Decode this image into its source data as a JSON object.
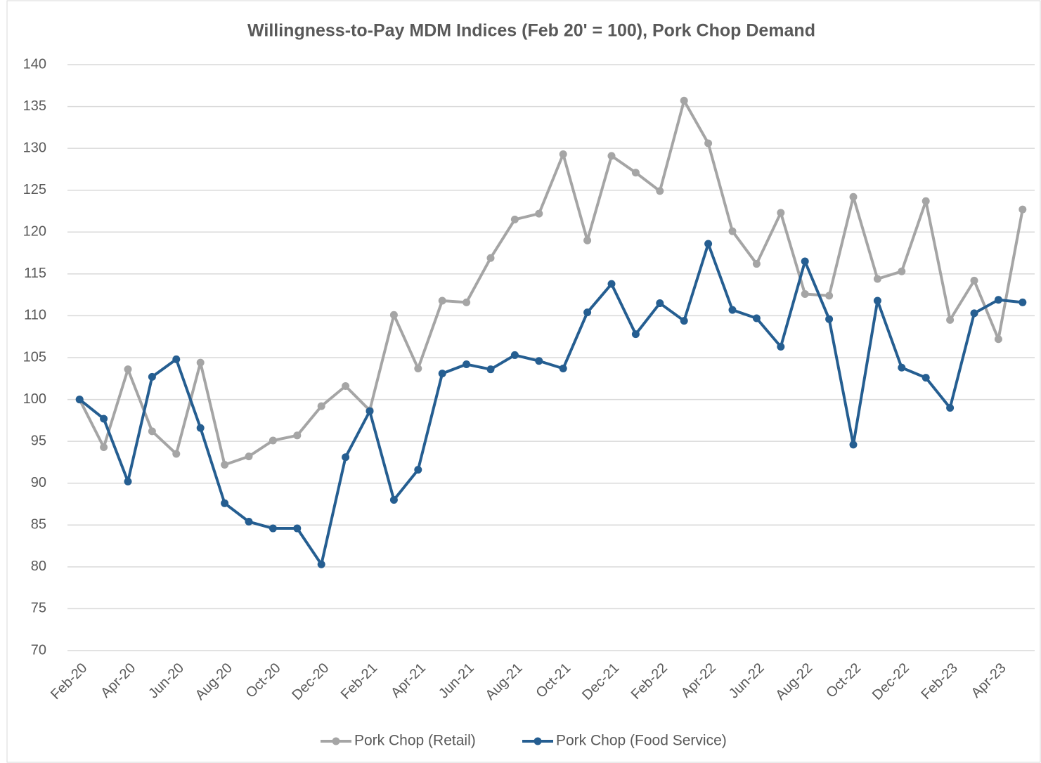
{
  "chart_data": {
    "type": "line",
    "title": "Willingness-to-Pay MDM Indices (Feb 20' = 100), Pork Chop Demand",
    "categories": [
      "Feb-20",
      null,
      "Apr-20",
      null,
      "Jun-20",
      null,
      "Aug-20",
      null,
      "Oct-20",
      null,
      "Dec-20",
      null,
      "Feb-21",
      null,
      "Apr-21",
      null,
      "Jun-21",
      null,
      "Aug-21",
      null,
      "Oct-21",
      null,
      "Dec-21",
      null,
      "Feb-22",
      null,
      "Apr-22",
      null,
      "Jun-22",
      null,
      "Aug-22",
      null,
      "Oct-22",
      null,
      "Dec-22",
      null,
      "Feb-23",
      null,
      "Apr-23",
      null
    ],
    "series": [
      {
        "name": "Pork Chop (Retail)",
        "color": "#a5a5a5",
        "values": [
          100,
          94.3,
          103.6,
          96.2,
          93.5,
          104.4,
          92.2,
          93.2,
          95.1,
          95.7,
          99.2,
          101.6,
          98.7,
          110.1,
          103.7,
          111.8,
          111.6,
          116.9,
          121.5,
          122.2,
          129.3,
          119.0,
          129.1,
          127.1,
          124.9,
          135.7,
          130.6,
          120.1,
          116.2,
          122.3,
          112.6,
          112.4,
          124.2,
          114.4,
          115.3,
          123.7,
          109.5,
          114.2,
          107.2,
          122.7
        ]
      },
      {
        "name": "Pork Chop (Food Service)",
        "color": "#255e91",
        "values": [
          100,
          97.7,
          90.2,
          102.7,
          104.8,
          96.6,
          87.6,
          85.4,
          84.6,
          84.6,
          80.3,
          93.1,
          98.6,
          88.0,
          91.6,
          103.1,
          104.2,
          103.6,
          105.3,
          104.6,
          103.7,
          110.4,
          113.8,
          107.8,
          111.5,
          109.4,
          118.6,
          110.7,
          109.7,
          106.3,
          116.5,
          109.6,
          94.6,
          111.8,
          103.8,
          102.6,
          99.0,
          110.3,
          111.9,
          111.6
        ]
      }
    ],
    "ylim": [
      70,
      140
    ],
    "yticks": [
      70,
      75,
      80,
      85,
      90,
      95,
      100,
      105,
      110,
      115,
      120,
      125,
      130,
      135,
      140
    ],
    "grid": true,
    "legend": "bottom"
  }
}
